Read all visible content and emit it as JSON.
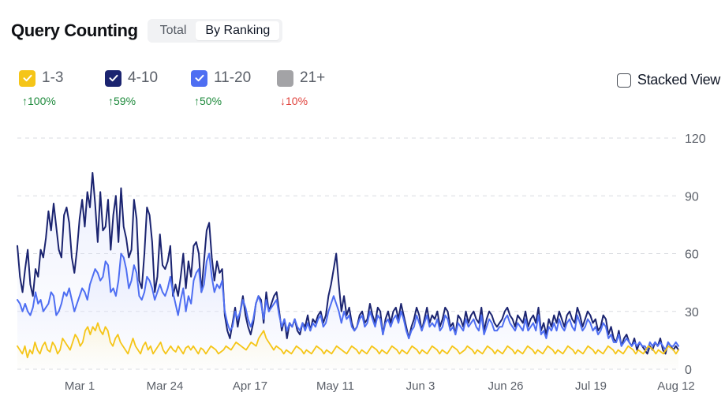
{
  "header": {
    "title": "Query Counting",
    "tabs": [
      {
        "label": "Total",
        "active": false
      },
      {
        "label": "By Ranking",
        "active": true
      }
    ]
  },
  "legend": [
    {
      "label": "1-3",
      "color": "#f5c518",
      "checked": true,
      "change": "↑100%",
      "direction": "up"
    },
    {
      "label": "4-10",
      "color": "#1b2470",
      "checked": true,
      "change": "↑59%",
      "direction": "up"
    },
    {
      "label": "11-20",
      "color": "#4e6ef2",
      "checked": true,
      "change": "↑50%",
      "direction": "up"
    },
    {
      "label": "21+",
      "color": "#a3a3a6",
      "checked": false,
      "change": "↓10%",
      "direction": "down"
    }
  ],
  "stacked_view": {
    "label": "Stacked View",
    "checked": false
  },
  "chart_data": {
    "type": "area",
    "x_ticks": [
      "Mar 1",
      "Mar 24",
      "Apr 17",
      "May 11",
      "Jun 3",
      "Jun 26",
      "Jul 19",
      "Aug 12"
    ],
    "y_ticks": [
      0,
      30,
      60,
      90,
      120
    ],
    "ylim": [
      0,
      120
    ],
    "grid": true,
    "y_axis_side": "right",
    "series": [
      {
        "name": "4-10",
        "color": "#1b2470",
        "values": [
          64,
          48,
          40,
          52,
          62,
          44,
          38,
          52,
          48,
          62,
          58,
          68,
          82,
          72,
          86,
          74,
          62,
          58,
          80,
          84,
          76,
          58,
          50,
          62,
          78,
          88,
          74,
          92,
          84,
          102,
          86,
          66,
          92,
          72,
          74,
          88,
          62,
          80,
          90,
          66,
          94,
          74,
          68,
          58,
          62,
          88,
          78,
          46,
          42,
          60,
          84,
          80,
          66,
          40,
          48,
          70,
          54,
          52,
          56,
          64,
          38,
          44,
          38,
          48,
          60,
          42,
          56,
          48,
          64,
          66,
          60,
          40,
          56,
          72,
          76,
          58,
          46,
          56,
          50,
          52,
          28,
          20,
          16,
          24,
          32,
          22,
          30,
          38,
          28,
          22,
          18,
          24,
          34,
          38,
          36,
          24,
          40,
          30,
          34,
          38,
          40,
          30,
          20,
          26,
          16,
          24,
          22,
          26,
          20,
          18,
          24,
          22,
          28,
          20,
          26,
          24,
          28,
          30,
          24,
          28,
          38,
          44,
          52,
          60,
          44,
          30,
          38,
          28,
          32,
          24,
          20,
          22,
          28,
          30,
          24,
          26,
          34,
          28,
          24,
          32,
          30,
          18,
          26,
          30,
          24,
          30,
          32,
          26,
          34,
          28,
          22,
          16,
          22,
          26,
          32,
          28,
          20,
          26,
          32,
          24,
          28,
          26,
          30,
          22,
          26,
          32,
          30,
          22,
          24,
          18,
          28,
          26,
          22,
          30,
          24,
          28,
          30,
          26,
          24,
          32,
          20,
          26,
          30,
          28,
          24,
          22,
          24,
          26,
          30,
          32,
          28,
          26,
          22,
          28,
          26,
          24,
          30,
          22,
          26,
          28,
          24,
          32,
          20,
          24,
          18,
          26,
          22,
          28,
          24,
          30,
          26,
          22,
          28,
          30,
          26,
          24,
          32,
          28,
          22,
          26,
          30,
          28,
          24,
          26,
          20,
          22,
          28,
          26,
          18,
          22,
          16,
          14,
          20,
          12,
          16,
          18,
          14,
          12,
          16,
          10,
          14,
          12,
          10,
          8,
          12,
          10,
          14,
          12,
          16,
          10,
          8,
          14,
          12,
          10,
          12,
          10
        ]
      },
      {
        "name": "11-20",
        "color": "#4e6ef2",
        "values": [
          36,
          34,
          30,
          34,
          30,
          28,
          32,
          40,
          34,
          36,
          30,
          32,
          34,
          40,
          38,
          28,
          30,
          34,
          40,
          38,
          42,
          36,
          30,
          34,
          38,
          42,
          40,
          36,
          44,
          48,
          52,
          50,
          46,
          48,
          56,
          54,
          40,
          42,
          38,
          46,
          60,
          58,
          52,
          42,
          46,
          54,
          50,
          38,
          36,
          40,
          48,
          46,
          42,
          36,
          40,
          44,
          40,
          38,
          42,
          48,
          40,
          34,
          28,
          36,
          42,
          30,
          38,
          34,
          46,
          50,
          52,
          40,
          44,
          56,
          60,
          48,
          40,
          44,
          42,
          46,
          30,
          24,
          20,
          22,
          30,
          26,
          30,
          36,
          32,
          26,
          22,
          26,
          34,
          38,
          34,
          26,
          36,
          30,
          32,
          34,
          36,
          28,
          22,
          26,
          20,
          24,
          22,
          26,
          22,
          20,
          24,
          20,
          24,
          20,
          24,
          22,
          26,
          28,
          22,
          24,
          30,
          34,
          38,
          34,
          30,
          24,
          30,
          26,
          28,
          22,
          20,
          22,
          26,
          28,
          22,
          24,
          30,
          26,
          22,
          28,
          26,
          18,
          24,
          26,
          22,
          26,
          28,
          24,
          30,
          26,
          20,
          16,
          20,
          22,
          28,
          24,
          20,
          24,
          28,
          22,
          24,
          22,
          26,
          20,
          22,
          28,
          26,
          20,
          22,
          18,
          24,
          22,
          20,
          26,
          22,
          24,
          26,
          22,
          20,
          28,
          18,
          22,
          26,
          24,
          20,
          20,
          22,
          22,
          26,
          28,
          24,
          22,
          20,
          24,
          22,
          20,
          26,
          20,
          22,
          24,
          20,
          28,
          18,
          20,
          16,
          22,
          20,
          24,
          20,
          26,
          22,
          20,
          24,
          26,
          22,
          20,
          28,
          24,
          20,
          22,
          26,
          24,
          20,
          22,
          18,
          20,
          24,
          22,
          16,
          18,
          14,
          14,
          18,
          12,
          14,
          16,
          14,
          12,
          14,
          12,
          14,
          12,
          12,
          10,
          14,
          12,
          14,
          12,
          14,
          12,
          10,
          14,
          12,
          12,
          14,
          12
        ]
      },
      {
        "name": "1-3",
        "color": "#f5c518",
        "values": [
          12,
          10,
          8,
          12,
          6,
          10,
          8,
          14,
          10,
          8,
          12,
          14,
          10,
          9,
          14,
          12,
          8,
          10,
          16,
          14,
          12,
          10,
          14,
          18,
          16,
          12,
          14,
          20,
          22,
          18,
          22,
          20,
          24,
          20,
          18,
          22,
          20,
          14,
          12,
          16,
          18,
          14,
          12,
          10,
          8,
          12,
          16,
          12,
          10,
          8,
          12,
          14,
          10,
          12,
          8,
          10,
          12,
          14,
          10,
          8,
          10,
          12,
          10,
          9,
          12,
          10,
          8,
          11,
          12,
          10,
          12,
          10,
          8,
          11,
          10,
          8,
          10,
          12,
          11,
          10,
          8,
          9,
          10,
          12,
          11,
          10,
          12,
          14,
          13,
          12,
          11,
          10,
          12,
          14,
          13,
          12,
          16,
          18,
          20,
          16,
          14,
          12,
          10,
          12,
          11,
          10,
          8,
          10,
          9,
          8,
          10,
          12,
          11,
          10,
          8,
          10,
          9,
          8,
          10,
          12,
          11,
          10,
          8,
          10,
          9,
          8,
          10,
          12,
          11,
          10,
          9,
          8,
          10,
          12,
          11,
          10,
          8,
          10,
          9,
          8,
          10,
          12,
          11,
          10,
          8,
          10,
          9,
          8,
          10,
          12,
          11,
          10,
          8,
          10,
          9,
          8,
          10,
          12,
          11,
          10,
          8,
          10,
          9,
          8,
          10,
          12,
          11,
          10,
          8,
          10,
          9,
          8,
          10,
          12,
          11,
          10,
          8,
          9,
          10,
          12,
          11,
          10,
          8,
          10,
          9,
          8,
          10,
          12,
          11,
          10,
          8,
          10,
          9,
          8,
          10,
          12,
          11,
          10,
          8,
          10,
          9,
          8,
          10,
          12,
          11,
          10,
          8,
          10,
          9,
          8,
          10,
          12,
          11,
          10,
          8,
          10,
          9,
          8,
          10,
          12,
          11,
          10,
          8,
          10,
          9,
          8,
          10,
          12,
          11,
          10,
          8,
          10,
          9,
          8,
          10,
          12,
          11,
          10,
          8,
          10,
          9,
          8,
          10,
          12,
          11,
          10,
          8,
          10,
          9,
          8,
          10,
          12,
          11,
          10,
          8,
          10,
          9,
          8,
          10,
          12,
          11,
          10,
          8,
          10
        ]
      }
    ]
  }
}
